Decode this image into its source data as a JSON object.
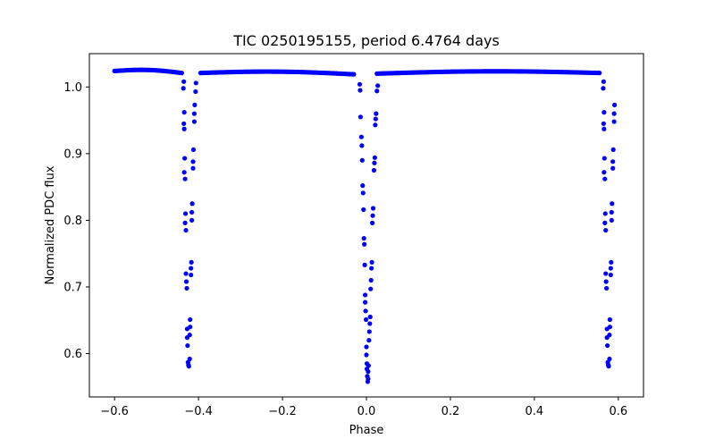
{
  "chart_data": {
    "type": "scatter",
    "title": "TIC 0250195155, period 6.4764 days",
    "xlabel": "Phase",
    "ylabel": "Normalized PDC flux",
    "xlim": [
      -0.66,
      0.66
    ],
    "ylim": [
      0.535,
      1.05
    ],
    "xticks": [
      -0.6,
      -0.4,
      -0.2,
      0.0,
      0.2,
      0.4,
      0.6
    ],
    "xtick_labels": [
      "−0.6",
      "−0.4",
      "−0.2",
      "0.0",
      "0.2",
      "0.4",
      "0.6"
    ],
    "yticks": [
      0.6,
      0.7,
      0.8,
      0.9,
      1.0
    ],
    "ytick_labels": [
      "0.6",
      "0.7",
      "0.8",
      "0.9",
      "1.0"
    ],
    "grid": false,
    "marker_color": "#0000ff",
    "series": [
      {
        "name": "flux",
        "baseline_segments": [
          {
            "x_start": -0.6,
            "x_end": -0.44,
            "y_start": 1.024,
            "y_end": 1.021
          },
          {
            "x_start": -0.395,
            "x_end": -0.03,
            "y_start": 1.021,
            "y_end": 1.019
          },
          {
            "x_start": 0.025,
            "x_end": 0.555,
            "y_start": 1.02,
            "y_end": 1.021
          }
        ],
        "baseline_bump": 0.003,
        "baseline_step": 0.0035,
        "points": [
          [
            -0.435,
            1.008
          ],
          [
            -0.436,
            0.998
          ],
          [
            -0.434,
            0.962
          ],
          [
            -0.435,
            0.945
          ],
          [
            -0.434,
            0.937
          ],
          [
            -0.433,
            0.893
          ],
          [
            -0.434,
            0.872
          ],
          [
            -0.432,
            0.862
          ],
          [
            -0.431,
            0.81
          ],
          [
            -0.432,
            0.796
          ],
          [
            -0.43,
            0.785
          ],
          [
            -0.43,
            0.72
          ],
          [
            -0.429,
            0.708
          ],
          [
            -0.428,
            0.698
          ],
          [
            -0.427,
            0.637
          ],
          [
            -0.427,
            0.624
          ],
          [
            -0.426,
            0.612
          ],
          [
            -0.425,
            0.587
          ],
          [
            -0.424,
            0.583
          ],
          [
            -0.423,
            0.581
          ],
          [
            -0.421,
            0.592
          ],
          [
            -0.421,
            0.628
          ],
          [
            -0.42,
            0.64
          ],
          [
            -0.42,
            0.651
          ],
          [
            -0.418,
            0.718
          ],
          [
            -0.418,
            0.728
          ],
          [
            -0.417,
            0.737
          ],
          [
            -0.416,
            0.8
          ],
          [
            -0.416,
            0.812
          ],
          [
            -0.415,
            0.825
          ],
          [
            -0.413,
            0.878
          ],
          [
            -0.413,
            0.888
          ],
          [
            -0.412,
            0.906
          ],
          [
            -0.41,
            0.948
          ],
          [
            -0.41,
            0.96
          ],
          [
            -0.409,
            0.973
          ],
          [
            -0.407,
            0.993
          ],
          [
            -0.406,
            1.006
          ],
          [
            -0.016,
            1.004
          ],
          [
            -0.015,
            0.995
          ],
          [
            -0.014,
            0.955
          ],
          [
            -0.012,
            0.925
          ],
          [
            -0.011,
            0.912
          ],
          [
            -0.01,
            0.89
          ],
          [
            -0.009,
            0.852
          ],
          [
            -0.008,
            0.841
          ],
          [
            -0.007,
            0.816
          ],
          [
            -0.006,
            0.773
          ],
          [
            -0.005,
            0.764
          ],
          [
            -0.004,
            0.733
          ],
          [
            -0.003,
            0.688
          ],
          [
            -0.003,
            0.677
          ],
          [
            -0.002,
            0.664
          ],
          [
            -0.001,
            0.651
          ],
          [
            0.0,
            0.61
          ],
          [
            0.0,
            0.598
          ],
          [
            0.001,
            0.585
          ],
          [
            0.001,
            0.577
          ],
          [
            0.002,
            0.566
          ],
          [
            0.003,
            0.558
          ],
          [
            0.004,
            0.562
          ],
          [
            0.004,
            0.573
          ],
          [
            0.005,
            0.582
          ],
          [
            0.006,
            0.62
          ],
          [
            0.007,
            0.633
          ],
          [
            0.008,
            0.645
          ],
          [
            0.009,
            0.655
          ],
          [
            0.01,
            0.697
          ],
          [
            0.011,
            0.71
          ],
          [
            0.012,
            0.728
          ],
          [
            0.013,
            0.737
          ],
          [
            0.014,
            0.796
          ],
          [
            0.015,
            0.807
          ],
          [
            0.016,
            0.818
          ],
          [
            0.018,
            0.875
          ],
          [
            0.019,
            0.886
          ],
          [
            0.02,
            0.894
          ],
          [
            0.021,
            0.943
          ],
          [
            0.022,
            0.952
          ],
          [
            0.023,
            0.96
          ],
          [
            0.025,
            0.994
          ],
          [
            0.027,
            1.002
          ],
          [
            0.565,
            1.008
          ],
          [
            0.564,
            0.998
          ],
          [
            0.566,
            0.962
          ],
          [
            0.565,
            0.945
          ],
          [
            0.566,
            0.937
          ],
          [
            0.567,
            0.893
          ],
          [
            0.566,
            0.872
          ],
          [
            0.568,
            0.862
          ],
          [
            0.569,
            0.81
          ],
          [
            0.568,
            0.796
          ],
          [
            0.57,
            0.785
          ],
          [
            0.57,
            0.72
          ],
          [
            0.571,
            0.708
          ],
          [
            0.572,
            0.698
          ],
          [
            0.573,
            0.637
          ],
          [
            0.573,
            0.624
          ],
          [
            0.574,
            0.612
          ],
          [
            0.575,
            0.587
          ],
          [
            0.576,
            0.583
          ],
          [
            0.577,
            0.581
          ],
          [
            0.579,
            0.592
          ],
          [
            0.579,
            0.628
          ],
          [
            0.58,
            0.64
          ],
          [
            0.58,
            0.651
          ],
          [
            0.582,
            0.718
          ],
          [
            0.582,
            0.728
          ],
          [
            0.583,
            0.737
          ],
          [
            0.584,
            0.8
          ],
          [
            0.584,
            0.812
          ],
          [
            0.585,
            0.825
          ],
          [
            0.587,
            0.878
          ],
          [
            0.587,
            0.888
          ],
          [
            0.588,
            0.906
          ],
          [
            0.59,
            0.948
          ],
          [
            0.59,
            0.96
          ],
          [
            0.591,
            0.973
          ]
        ]
      }
    ]
  }
}
